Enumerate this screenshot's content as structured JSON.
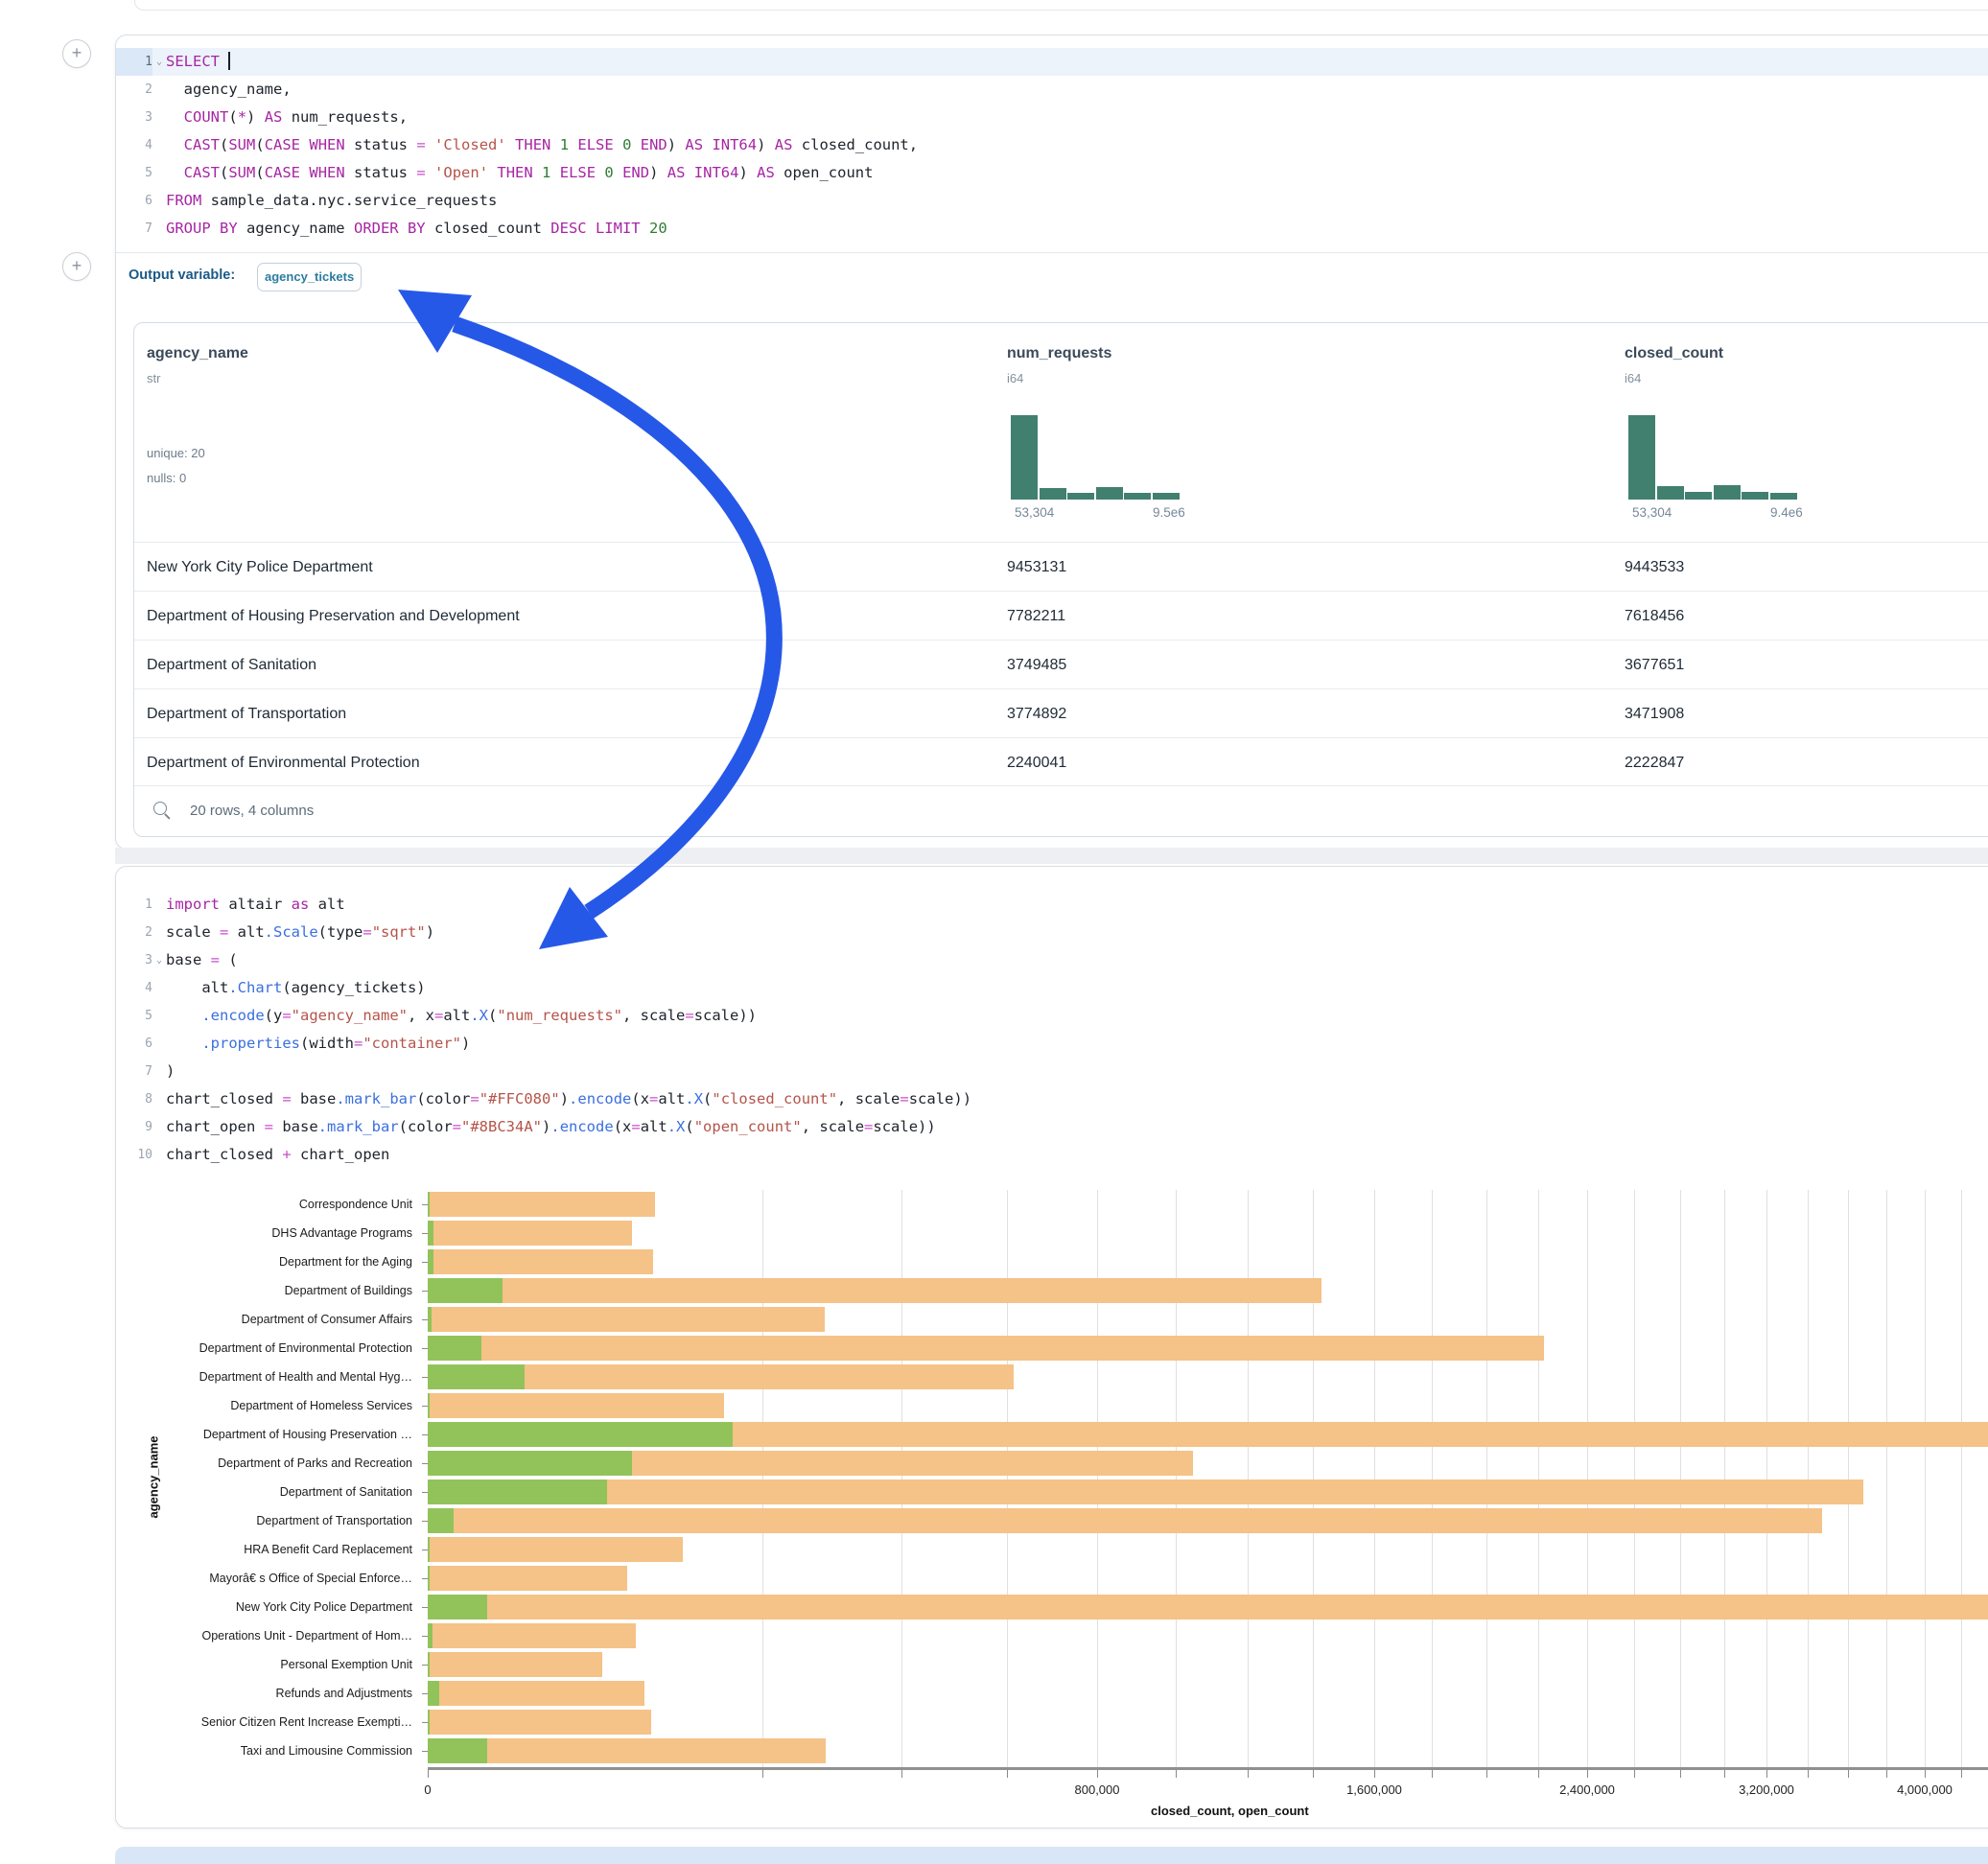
{
  "colors": {
    "arrow": "#2658E8",
    "bar_closed": "#F5C287",
    "bar_open": "#92C35A",
    "histogram": "#41806F",
    "code_keyword": "#A626A4",
    "code_string": "#B5544A",
    "code_number": "#2F7D33",
    "code_operator": "#C94FC9",
    "code_function": "#3B6FE0"
  },
  "sql_cell": {
    "active_line": 1,
    "fold_lines": [
      1
    ],
    "lines": [
      [
        [
          "k",
          "SELECT"
        ],
        [
          "t",
          " "
        ],
        [
          "cur",
          ""
        ]
      ],
      [
        [
          "t",
          "  agency_name,"
        ]
      ],
      [
        [
          "t",
          "  "
        ],
        [
          "k",
          "COUNT"
        ],
        [
          "t",
          "("
        ],
        [
          "k",
          "*"
        ],
        [
          "t",
          ") "
        ],
        [
          "k",
          "AS"
        ],
        [
          "t",
          " num_requests,"
        ]
      ],
      [
        [
          "t",
          "  "
        ],
        [
          "k",
          "CAST"
        ],
        [
          "t",
          "("
        ],
        [
          "k",
          "SUM"
        ],
        [
          "t",
          "("
        ],
        [
          "k",
          "CASE"
        ],
        [
          "t",
          " "
        ],
        [
          "k",
          "WHEN"
        ],
        [
          "t",
          " status "
        ],
        [
          "o",
          "="
        ],
        [
          "t",
          " "
        ],
        [
          "s",
          "'Closed'"
        ],
        [
          "t",
          " "
        ],
        [
          "k",
          "THEN"
        ],
        [
          "t",
          " "
        ],
        [
          "n",
          "1"
        ],
        [
          "t",
          " "
        ],
        [
          "k",
          "ELSE"
        ],
        [
          "t",
          " "
        ],
        [
          "n",
          "0"
        ],
        [
          "t",
          " "
        ],
        [
          "k",
          "END"
        ],
        [
          "t",
          ") "
        ],
        [
          "k",
          "AS"
        ],
        [
          "t",
          " "
        ],
        [
          "k",
          "INT64"
        ],
        [
          "t",
          ") "
        ],
        [
          "k",
          "AS"
        ],
        [
          "t",
          " closed_count,"
        ]
      ],
      [
        [
          "t",
          "  "
        ],
        [
          "k",
          "CAST"
        ],
        [
          "t",
          "("
        ],
        [
          "k",
          "SUM"
        ],
        [
          "t",
          "("
        ],
        [
          "k",
          "CASE"
        ],
        [
          "t",
          " "
        ],
        [
          "k",
          "WHEN"
        ],
        [
          "t",
          " status "
        ],
        [
          "o",
          "="
        ],
        [
          "t",
          " "
        ],
        [
          "s",
          "'Open'"
        ],
        [
          "t",
          " "
        ],
        [
          "k",
          "THEN"
        ],
        [
          "t",
          " "
        ],
        [
          "n",
          "1"
        ],
        [
          "t",
          " "
        ],
        [
          "k",
          "ELSE"
        ],
        [
          "t",
          " "
        ],
        [
          "n",
          "0"
        ],
        [
          "t",
          " "
        ],
        [
          "k",
          "END"
        ],
        [
          "t",
          ") "
        ],
        [
          "k",
          "AS"
        ],
        [
          "t",
          " "
        ],
        [
          "k",
          "INT64"
        ],
        [
          "t",
          ") "
        ],
        [
          "k",
          "AS"
        ],
        [
          "t",
          " open_count"
        ]
      ],
      [
        [
          "k",
          "FROM"
        ],
        [
          "t",
          " sample_data.nyc.service_requests"
        ]
      ],
      [
        [
          "k",
          "GROUP BY"
        ],
        [
          "t",
          " agency_name "
        ],
        [
          "k",
          "ORDER BY"
        ],
        [
          "t",
          " closed_count "
        ],
        [
          "k",
          "DESC"
        ],
        [
          "t",
          " "
        ],
        [
          "k",
          "LIMIT"
        ],
        [
          "t",
          " "
        ],
        [
          "n",
          "20"
        ]
      ]
    ],
    "output_variable": {
      "label": "Output variable:",
      "value": "agency_tickets"
    }
  },
  "table": {
    "columns": [
      {
        "name": "agency_name",
        "type": "str",
        "meta": [
          "unique: 20",
          "nulls: 0"
        ]
      },
      {
        "name": "num_requests",
        "type": "i64",
        "histogram": [
          1,
          0.14,
          0.08,
          0.15,
          0.08,
          0.08
        ],
        "min_label": "53,304",
        "max_label": "9.5e6"
      },
      {
        "name": "closed_count",
        "type": "i64",
        "histogram": [
          1,
          0.16,
          0.09,
          0.17,
          0.09,
          0.08
        ],
        "min_label": "53,304",
        "max_label": "9.4e6"
      }
    ],
    "rows": [
      [
        "New York City Police Department",
        "9453131",
        "9443533"
      ],
      [
        "Department of Housing Preservation and Development",
        "7782211",
        "7618456"
      ],
      [
        "Department of Sanitation",
        "3749485",
        "3677651"
      ],
      [
        "Department of Transportation",
        "3774892",
        "3471908"
      ],
      [
        "Department of Environmental Protection",
        "2240041",
        "2222847"
      ]
    ],
    "footer": "20 rows, 4 columns"
  },
  "python_cell": {
    "fold_lines": [
      3
    ],
    "lines": [
      [
        [
          "k",
          "import"
        ],
        [
          "t",
          " altair "
        ],
        [
          "k",
          "as"
        ],
        [
          "t",
          " alt"
        ]
      ],
      [
        [
          "t",
          "scale "
        ],
        [
          "o",
          "="
        ],
        [
          "t",
          " alt"
        ],
        [
          "f",
          ".Scale"
        ],
        [
          "t",
          "(type"
        ],
        [
          "o",
          "="
        ],
        [
          "s",
          "\"sqrt\""
        ],
        [
          "t",
          ")"
        ]
      ],
      [
        [
          "t",
          "base "
        ],
        [
          "o",
          "="
        ],
        [
          "t",
          " ("
        ]
      ],
      [
        [
          "t",
          "    alt"
        ],
        [
          "f",
          ".Chart"
        ],
        [
          "t",
          "(agency_tickets)"
        ]
      ],
      [
        [
          "t",
          "    "
        ],
        [
          "f",
          ".encode"
        ],
        [
          "t",
          "(y"
        ],
        [
          "o",
          "="
        ],
        [
          "s",
          "\"agency_name\""
        ],
        [
          "t",
          ", x"
        ],
        [
          "o",
          "="
        ],
        [
          "t",
          "alt"
        ],
        [
          "f",
          ".X"
        ],
        [
          "t",
          "("
        ],
        [
          "s",
          "\"num_requests\""
        ],
        [
          "t",
          ", scale"
        ],
        [
          "o",
          "="
        ],
        [
          "t",
          "scale))"
        ]
      ],
      [
        [
          "t",
          "    "
        ],
        [
          "f",
          ".properties"
        ],
        [
          "t",
          "(width"
        ],
        [
          "o",
          "="
        ],
        [
          "s",
          "\"container\""
        ],
        [
          "t",
          ")"
        ]
      ],
      [
        [
          "t",
          ")"
        ]
      ],
      [
        [
          "t",
          "chart_closed "
        ],
        [
          "o",
          "="
        ],
        [
          "t",
          " base"
        ],
        [
          "f",
          ".mark_bar"
        ],
        [
          "t",
          "(color"
        ],
        [
          "o",
          "="
        ],
        [
          "s",
          "\"#FFC080\""
        ],
        [
          "t",
          ")"
        ],
        [
          "f",
          ".encode"
        ],
        [
          "t",
          "(x"
        ],
        [
          "o",
          "="
        ],
        [
          "t",
          "alt"
        ],
        [
          "f",
          ".X"
        ],
        [
          "t",
          "("
        ],
        [
          "s",
          "\"closed_count\""
        ],
        [
          "t",
          ", scale"
        ],
        [
          "o",
          "="
        ],
        [
          "t",
          "scale))"
        ]
      ],
      [
        [
          "t",
          "chart_open "
        ],
        [
          "o",
          "="
        ],
        [
          "t",
          " base"
        ],
        [
          "f",
          ".mark_bar"
        ],
        [
          "t",
          "(color"
        ],
        [
          "o",
          "="
        ],
        [
          "s",
          "\"#8BC34A\""
        ],
        [
          "t",
          ")"
        ],
        [
          "f",
          ".encode"
        ],
        [
          "t",
          "(x"
        ],
        [
          "o",
          "="
        ],
        [
          "t",
          "alt"
        ],
        [
          "f",
          ".X"
        ],
        [
          "t",
          "("
        ],
        [
          "s",
          "\"open_count\""
        ],
        [
          "t",
          ", scale"
        ],
        [
          "o",
          "="
        ],
        [
          "t",
          "scale))"
        ]
      ],
      [
        [
          "t",
          "chart_closed "
        ],
        [
          "o",
          "+"
        ],
        [
          "t",
          " chart_open"
        ]
      ]
    ]
  },
  "chart_data": {
    "type": "bar",
    "orientation": "horizontal",
    "x_scale_type": "sqrt",
    "xlabel": "closed_count, open_count",
    "ylabel": "agency_name",
    "grid": true,
    "grid_step": 200000,
    "x_visible_max": 4400000,
    "x_tick_values": [
      0,
      800000,
      1600000,
      2400000,
      3200000,
      4000000
    ],
    "x_tick_labels": [
      "0",
      "800,000",
      "1,600,000",
      "2,400,000",
      "3,200,000",
      "4,000,000"
    ],
    "categories": [
      "Correspondence Unit",
      "DHS Advantage Programs",
      "Department for the Aging",
      "Department of Buildings",
      "Department of Consumer Affairs",
      "Department of Environmental Protection",
      "Department of Health and Mental Hyg…",
      "Department of Homeless Services",
      "Department of Housing Preservation …",
      "Department of Parks and Recreation",
      "Department of Sanitation",
      "Department of Transportation",
      "HRA Benefit Card Replacement",
      "Mayorâ€ s Office of Special Enforce…",
      "New York City Police Department",
      "Operations Unit - Department of Hom…",
      "Personal Exemption Unit",
      "Refunds and Adjustments",
      "Senior Citizen Rent Increase Exempti…",
      "Taxi and Limousine Commission"
    ],
    "series": [
      {
        "name": "closed_count",
        "values": [
          92000,
          74500,
          90600,
          1426000,
          281400,
          2222847,
          613000,
          156800,
          7618456,
          1046000,
          3677651,
          3471908,
          116200,
          71000,
          9443533,
          77300,
          54400,
          84000,
          89200,
          283000
        ]
      },
      {
        "name": "open_count",
        "values": [
          10,
          60,
          60,
          10000,
          30,
          5150,
          16700,
          10,
          166000,
          74500,
          57400,
          1200,
          10,
          10,
          6300,
          40,
          10,
          240,
          10,
          6300
        ]
      }
    ]
  }
}
